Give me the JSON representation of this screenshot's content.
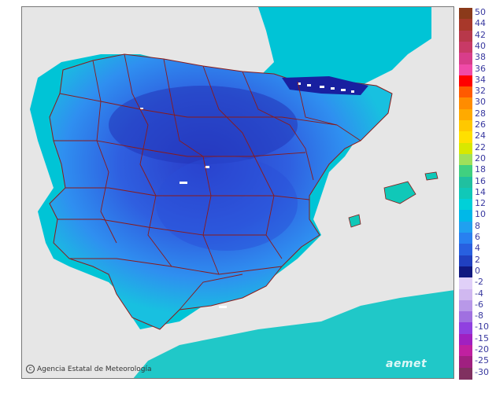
{
  "map": {
    "attribution": "Agencia Estatal de Meteorología",
    "logo_text": "aemet",
    "colors": {
      "sea": "#00c0d4",
      "land_outside": "#e6e6e6",
      "border": "#8a1a1a"
    }
  },
  "legend": {
    "scale": [
      {
        "label": "50",
        "color": "#8b3a1a"
      },
      {
        "label": "44",
        "color": "#a8382a"
      },
      {
        "label": "42",
        "color": "#b8384a"
      },
      {
        "label": "40",
        "color": "#c83a66"
      },
      {
        "label": "38",
        "color": "#d83d8a"
      },
      {
        "label": "36",
        "color": "#f04aa8"
      },
      {
        "label": "34",
        "color": "#ff0000"
      },
      {
        "label": "32",
        "color": "#ff5a00"
      },
      {
        "label": "30",
        "color": "#ff8c00"
      },
      {
        "label": "28",
        "color": "#ffaa00"
      },
      {
        "label": "26",
        "color": "#ffc800"
      },
      {
        "label": "24",
        "color": "#ffe000"
      },
      {
        "label": "22",
        "color": "#d8e800"
      },
      {
        "label": "20",
        "color": "#9fe05a"
      },
      {
        "label": "18",
        "color": "#40d080"
      },
      {
        "label": "16",
        "color": "#20c0a0"
      },
      {
        "label": "14",
        "color": "#10c8b8"
      },
      {
        "label": "12",
        "color": "#00d0d8"
      },
      {
        "label": "10",
        "color": "#00b8e8"
      },
      {
        "label": "8",
        "color": "#20a0f0"
      },
      {
        "label": "6",
        "color": "#2880f0"
      },
      {
        "label": "4",
        "color": "#2860e0"
      },
      {
        "label": "2",
        "color": "#2040c0"
      },
      {
        "label": "0",
        "color": "#101880"
      },
      {
        "label": "-2",
        "color": "#e0d0f8"
      },
      {
        "label": "-4",
        "color": "#d0b8f0"
      },
      {
        "label": "-6",
        "color": "#b898e8"
      },
      {
        "label": "-8",
        "color": "#a070e0"
      },
      {
        "label": "-10",
        "color": "#9040e0"
      },
      {
        "label": "-15",
        "color": "#a020c0"
      },
      {
        "label": "-20",
        "color": "#c020a0"
      },
      {
        "label": "-25",
        "color": "#a02080"
      },
      {
        "label": "-30",
        "color": "#803060"
      }
    ]
  }
}
